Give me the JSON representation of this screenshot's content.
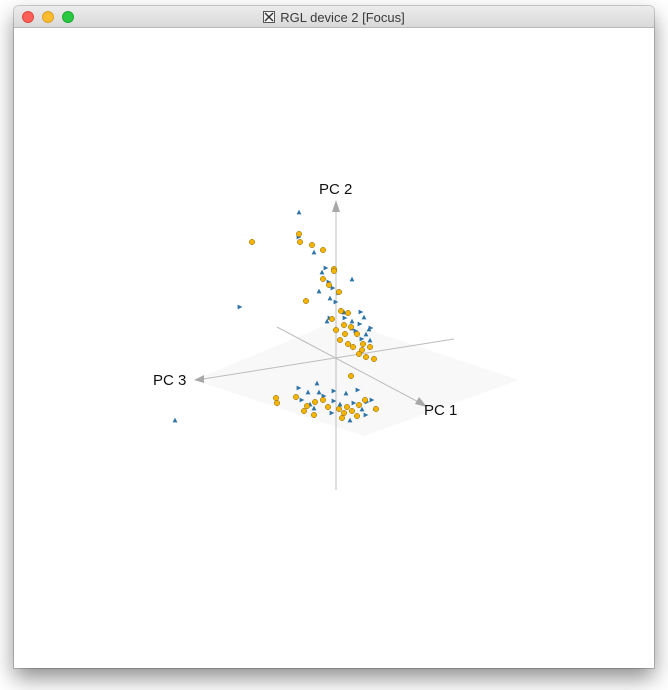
{
  "window": {
    "title": "RGL device 2 [Focus]"
  },
  "scene": {
    "axes": [
      {
        "label": "PC 1"
      },
      {
        "label": "PC 2"
      },
      {
        "label": "PC 3"
      }
    ],
    "colors": {
      "group_sphere": "#f5b400",
      "group_tetra": "#2f74a8",
      "axis_line": "#bcbcbc",
      "plane": "#f3f3f3"
    },
    "groups": [
      {
        "shape": "sphere"
      },
      {
        "shape": "tetrahedron"
      }
    ]
  }
}
